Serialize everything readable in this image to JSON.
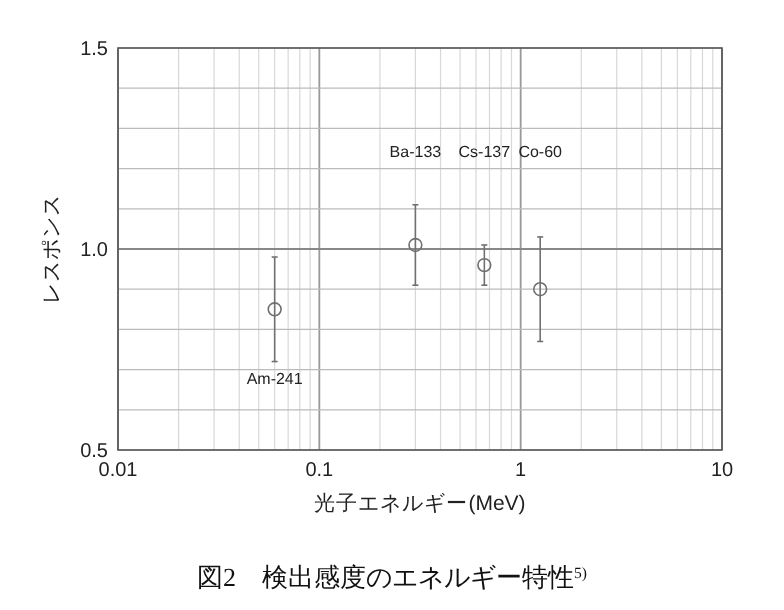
{
  "chart_data": {
    "type": "scatter",
    "title": "図2　検出感度のエネルギー特性$^{5)}$",
    "xlabel": "光子エネルギー(MeV)",
    "ylabel": "レスポンス",
    "x": [
      0.06,
      0.3,
      0.66,
      1.25
    ],
    "values": [
      0.85,
      1.01,
      0.96,
      0.9
    ],
    "errors": [
      0.13,
      0.1,
      0.05,
      0.13
    ],
    "color": "#707070",
    "marker": "circle",
    "log": "x",
    "grid": true,
    "xlim": [
      0.01,
      10
    ],
    "xticks": [
      0.01,
      {
        "value": 0.02,
        "label": null
      },
      {
        "value": 0.03,
        "label": null
      },
      {
        "value": 0.04,
        "label": null
      },
      {
        "value": 0.05,
        "label": null
      },
      {
        "value": 0.06,
        "label": null
      },
      {
        "value": 0.07,
        "label": null
      },
      {
        "value": 0.08,
        "label": null
      },
      {
        "value": 0.09,
        "label": null
      },
      0.1,
      {
        "value": 0.2,
        "label": null
      },
      {
        "value": 0.3,
        "label": null
      },
      {
        "value": 0.4,
        "label": null
      },
      {
        "value": 0.5,
        "label": null
      },
      {
        "value": 0.6,
        "label": null
      },
      {
        "value": 0.7,
        "label": null
      },
      {
        "value": 0.8,
        "label": null
      },
      {
        "value": 0.9,
        "label": null
      },
      1,
      {
        "value": 2,
        "label": null
      },
      {
        "value": 3,
        "label": null
      },
      {
        "value": 4,
        "label": null
      },
      {
        "value": 5,
        "label": null
      },
      {
        "value": 6,
        "label": null
      },
      {
        "value": 7,
        "label": null
      },
      {
        "value": 8,
        "label": null
      },
      {
        "value": 9,
        "label": null
      },
      10
    ],
    "ylim": [
      0.5,
      1.5
    ],
    "yticks": [
      0.5,
      {
        "value": 0.6,
        "label": null
      },
      {
        "value": 0.7,
        "label": null
      },
      {
        "value": 0.8,
        "label": null
      },
      {
        "value": 0.9,
        "label": null
      },
      {
        "value": 1,
        "label": "1.0"
      },
      {
        "value": 1.1,
        "label": null
      },
      {
        "value": 1.2,
        "label": null
      },
      {
        "value": 1.3,
        "label": null
      },
      {
        "value": 1.4,
        "label": null
      },
      1.5
    ],
    "ref_lines": [
      {
        "axis": "y",
        "value": 1,
        "color": "#888888"
      }
    ],
    "annotations": [
      "Am-241",
      "Ba-133",
      "Cs-137",
      "Co-60"
    ]
  }
}
